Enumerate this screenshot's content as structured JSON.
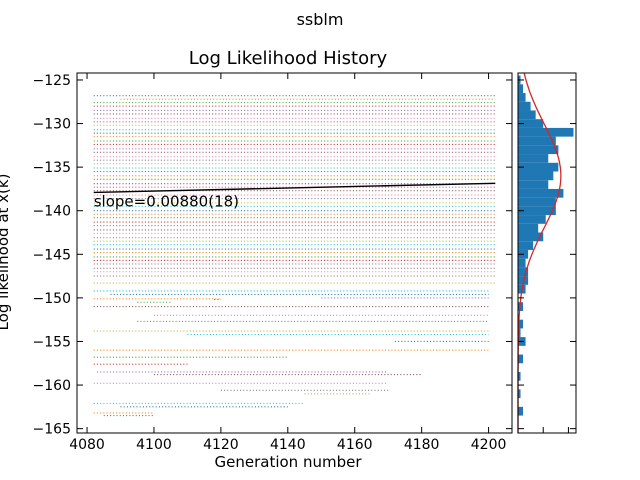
{
  "figure": {
    "suptitle": "ssblm"
  },
  "chart_data": [
    {
      "type": "scatter",
      "title": "Log Likelihood History",
      "xlabel": "Generation number",
      "ylabel": "Log likelihood at x(k)",
      "xlim": [
        4077,
        4207
      ],
      "ylim": [
        -165.5,
        -124.2
      ],
      "xticks": [
        4080,
        4100,
        4120,
        4140,
        4160,
        4180,
        4200
      ],
      "yticks": [
        -125,
        -130,
        -135,
        -140,
        -145,
        -150,
        -155,
        -160,
        -165
      ],
      "grid": false,
      "annotation": "slope=0.00880(18)",
      "fit_line": {
        "x": [
          4082,
          4202
        ],
        "y": [
          -137.9,
          -136.85
        ],
        "color": "#000000"
      },
      "trace_colors": [
        "#1f77b4",
        "#ff7f0e",
        "#2ca02c",
        "#d62728",
        "#9467bd",
        "#8c564b",
        "#e377c2",
        "#7f7f7f",
        "#bcbd22",
        "#17becf"
      ],
      "series": [
        {
          "x": [
            4082,
            4202
          ],
          "y": -126.8
        },
        {
          "x": [
            4090,
            4202
          ],
          "y": -127.2
        },
        {
          "x": [
            4082,
            4202
          ],
          "y": -127.6
        },
        {
          "x": [
            4082,
            4202
          ],
          "y": -128.0
        },
        {
          "x": [
            4082,
            4202
          ],
          "y": -128.5
        },
        {
          "x": [
            4082,
            4202
          ],
          "y": -128.9
        },
        {
          "x": [
            4082,
            4202
          ],
          "y": -129.4
        },
        {
          "x": [
            4082,
            4202
          ],
          "y": -129.8
        },
        {
          "x": [
            4082,
            4202
          ],
          "y": -130.2
        },
        {
          "x": [
            4082,
            4202
          ],
          "y": -130.7
        },
        {
          "x": [
            4082,
            4202
          ],
          "y": -131.1
        },
        {
          "x": [
            4082,
            4202
          ],
          "y": -131.5
        },
        {
          "x": [
            4082,
            4202
          ],
          "y": -132.0
        },
        {
          "x": [
            4082,
            4202
          ],
          "y": -132.4
        },
        {
          "x": [
            4082,
            4202
          ],
          "y": -132.9
        },
        {
          "x": [
            4082,
            4202
          ],
          "y": -133.3
        },
        {
          "x": [
            4082,
            4202
          ],
          "y": -133.8
        },
        {
          "x": [
            4082,
            4202
          ],
          "y": -134.2
        },
        {
          "x": [
            4082,
            4202
          ],
          "y": -134.6
        },
        {
          "x": [
            4082,
            4202
          ],
          "y": -135.1
        },
        {
          "x": [
            4082,
            4202
          ],
          "y": -135.5
        },
        {
          "x": [
            4082,
            4202
          ],
          "y": -136.0
        },
        {
          "x": [
            4082,
            4202
          ],
          "y": -136.4
        },
        {
          "x": [
            4082,
            4202
          ],
          "y": -136.9
        },
        {
          "x": [
            4082,
            4202
          ],
          "y": -137.3
        },
        {
          "x": [
            4082,
            4202
          ],
          "y": -137.7
        },
        {
          "x": [
            4082,
            4202
          ],
          "y": -138.2
        },
        {
          "x": [
            4082,
            4202
          ],
          "y": -138.6
        },
        {
          "x": [
            4082,
            4202
          ],
          "y": -139.1
        },
        {
          "x": [
            4082,
            4202
          ],
          "y": -139.5
        },
        {
          "x": [
            4082,
            4202
          ],
          "y": -140.0
        },
        {
          "x": [
            4082,
            4202
          ],
          "y": -140.4
        },
        {
          "x": [
            4082,
            4202
          ],
          "y": -140.8
        },
        {
          "x": [
            4082,
            4202
          ],
          "y": -141.3
        },
        {
          "x": [
            4082,
            4202
          ],
          "y": -141.7
        },
        {
          "x": [
            4082,
            4202
          ],
          "y": -142.2
        },
        {
          "x": [
            4082,
            4202
          ],
          "y": -142.6
        },
        {
          "x": [
            4082,
            4202
          ],
          "y": -143.1
        },
        {
          "x": [
            4082,
            4202
          ],
          "y": -143.5
        },
        {
          "x": [
            4082,
            4202
          ],
          "y": -143.9
        },
        {
          "x": [
            4082,
            4202
          ],
          "y": -144.4
        },
        {
          "x": [
            4082,
            4202
          ],
          "y": -144.8
        },
        {
          "x": [
            4082,
            4202
          ],
          "y": -145.3
        },
        {
          "x": [
            4082,
            4202
          ],
          "y": -145.7
        },
        {
          "x": [
            4082,
            4202
          ],
          "y": -146.1
        },
        {
          "x": [
            4082,
            4202
          ],
          "y": -146.6
        },
        {
          "x": [
            4082,
            4202
          ],
          "y": -147.0
        },
        {
          "x": [
            4082,
            4202
          ],
          "y": -147.5
        },
        {
          "x": [
            4082,
            4202
          ],
          "y": -148.3
        },
        {
          "x": [
            4082,
            4200
          ],
          "y": -149.2
        },
        {
          "x": [
            4087,
            4200
          ],
          "y": -149.6
        },
        {
          "x": [
            4082,
            4120
          ],
          "y": -150.1
        },
        {
          "x": [
            4095,
            4105
          ],
          "y": -150.5
        },
        {
          "x": [
            4118,
            4120
          ],
          "y": -150.2
        },
        {
          "x": [
            4150,
            4200
          ],
          "y": -150.0
        },
        {
          "x": [
            4082,
            4200
          ],
          "y": -151.0
        },
        {
          "x": [
            4100,
            4200
          ],
          "y": -152.0
        },
        {
          "x": [
            4095,
            4200
          ],
          "y": -152.7
        },
        {
          "x": [
            4082,
            4200
          ],
          "y": -153.8
        },
        {
          "x": [
            4110,
            4200
          ],
          "y": -154.2
        },
        {
          "x": [
            4172,
            4200
          ],
          "y": -155.0
        },
        {
          "x": [
            4082,
            4200
          ],
          "y": -156.0
        },
        {
          "x": [
            4082,
            4140
          ],
          "y": -156.8
        },
        {
          "x": [
            4082,
            4110
          ],
          "y": -157.6
        },
        {
          "x": [
            4083,
            4170
          ],
          "y": -158.5
        },
        {
          "x": [
            4100,
            4180
          ],
          "y": -158.8
        },
        {
          "x": [
            4082,
            4170
          ],
          "y": -159.8
        },
        {
          "x": [
            4120,
            4170
          ],
          "y": -160.6
        },
        {
          "x": [
            4145,
            4165
          ],
          "y": -161.0
        },
        {
          "x": [
            4082,
            4145
          ],
          "y": -162.1
        },
        {
          "x": [
            4090,
            4140
          ],
          "y": -162.5
        },
        {
          "x": [
            4082,
            4100
          ],
          "y": -163.2
        },
        {
          "x": [
            4085,
            4100
          ],
          "y": -163.5
        }
      ]
    },
    {
      "type": "bar",
      "orientation": "horizontal",
      "description_of_axes": "marginal histogram sharing the y axis",
      "bin_centers": [
        -163.0,
        -161.0,
        -159.0,
        -157.0,
        -155.0,
        -154.0,
        -153.0,
        -151.0,
        -149.0,
        -148.0,
        -147.0,
        -146.0,
        -145.0,
        -144.0,
        -143.0,
        -142.0,
        -141.0,
        -140.0,
        -139.0,
        -138.0,
        -137.0,
        -136.0,
        -135.0,
        -134.0,
        -133.0,
        -132.0,
        -131.0,
        -130.0,
        -129.0,
        -128.0,
        -127.0,
        -126.0,
        -125.0
      ],
      "counts": [
        2,
        1,
        1,
        2,
        3,
        1,
        2,
        2,
        3,
        4,
        4,
        3,
        4,
        6,
        10,
        8,
        11,
        15,
        15,
        18,
        12,
        14,
        16,
        12,
        16,
        15,
        22,
        10,
        7,
        5,
        3,
        2,
        1
      ],
      "bar_color": "#1f77b4",
      "fit_curve": {
        "type": "gaussian",
        "mean": -136.0,
        "sigma": 6.0,
        "peak": 17.0,
        "color": "#d62728"
      },
      "xlim": [
        0,
        23
      ]
    }
  ]
}
